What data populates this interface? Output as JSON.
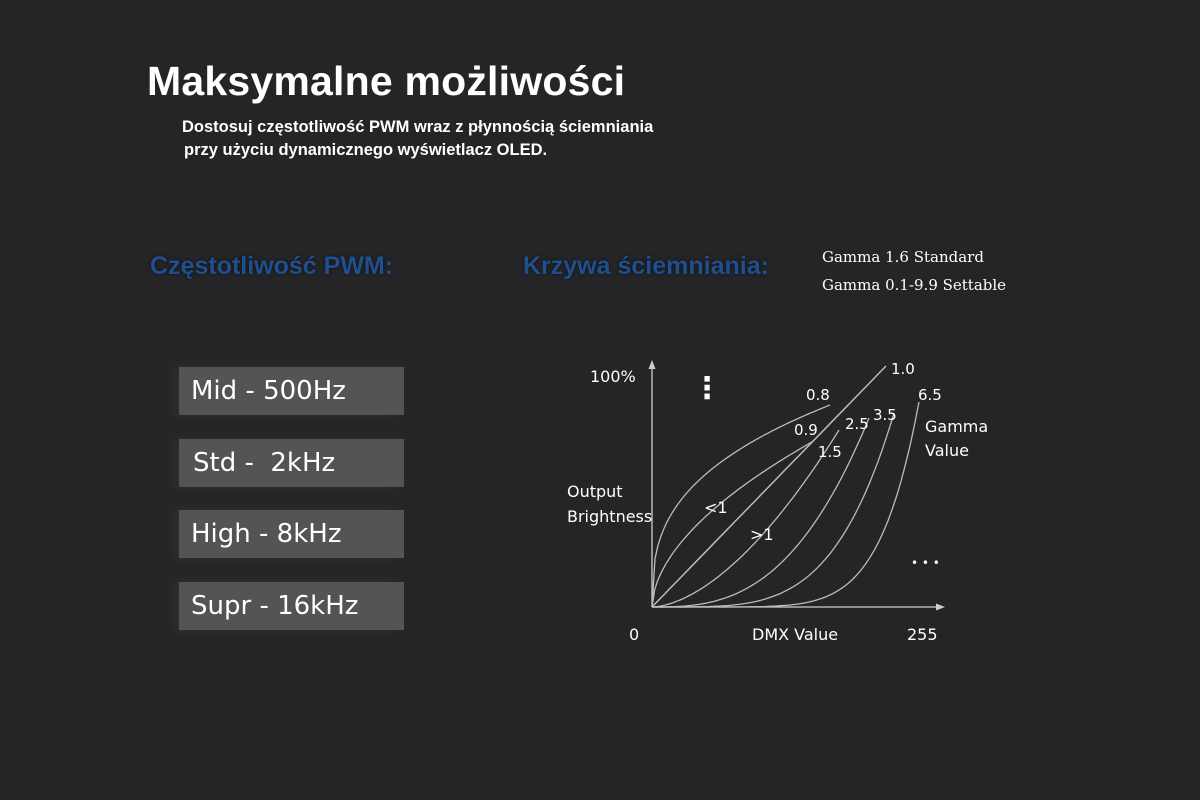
{
  "header": {
    "title": "Maksymalne możliwości",
    "subtitle_line1": "Dostosuj częstotliwość PWM wraz z płynnością ściemniania",
    "subtitle_line2": "przy użyciu dynamicznego wyświetlacz OLED."
  },
  "pwm": {
    "heading": "Częstotliwość PWM:",
    "options": [
      "Mid - 500Hz",
      "Std -  2kHz",
      "High - 8kHz",
      "Supr - 16kHz"
    ]
  },
  "dimming": {
    "heading": "Krzywa ściemniania:",
    "note_line1": "Gamma 1.6 Standard",
    "note_line2": "Gamma 0.1-9.9 Settable"
  },
  "colors": {
    "background": "#252426",
    "heading_blue": "#1f4f8e",
    "button_bg": "#545355",
    "curve": "#bdbcbd"
  },
  "chart_data": {
    "type": "line",
    "ylabel_top": "100%",
    "ylabel_line1": "Output",
    "ylabel_line2": "Brightness",
    "xlabel": "DMX Value",
    "x_min_label": "0",
    "x_max_label": "255",
    "xlim": [
      0,
      255
    ],
    "ylim": [
      0,
      100
    ],
    "legend_title_line1": "Gamma",
    "legend_title_line2": "Value",
    "region_below": ">1",
    "region_above": "<1",
    "ellipsis_vertical": "⋮",
    "ellipsis_horizontal": "• • •",
    "series": [
      {
        "name": "0.8",
        "gamma": 0.35
      },
      {
        "name": "0.9",
        "gamma": 0.55
      },
      {
        "name": "1.0",
        "gamma": 1.0
      },
      {
        "name": "1.5",
        "gamma": 1.7
      },
      {
        "name": "2.5",
        "gamma": 2.8
      },
      {
        "name": "3.5",
        "gamma": 4.2
      },
      {
        "name": "6.5",
        "gamma": 7.0
      }
    ]
  }
}
